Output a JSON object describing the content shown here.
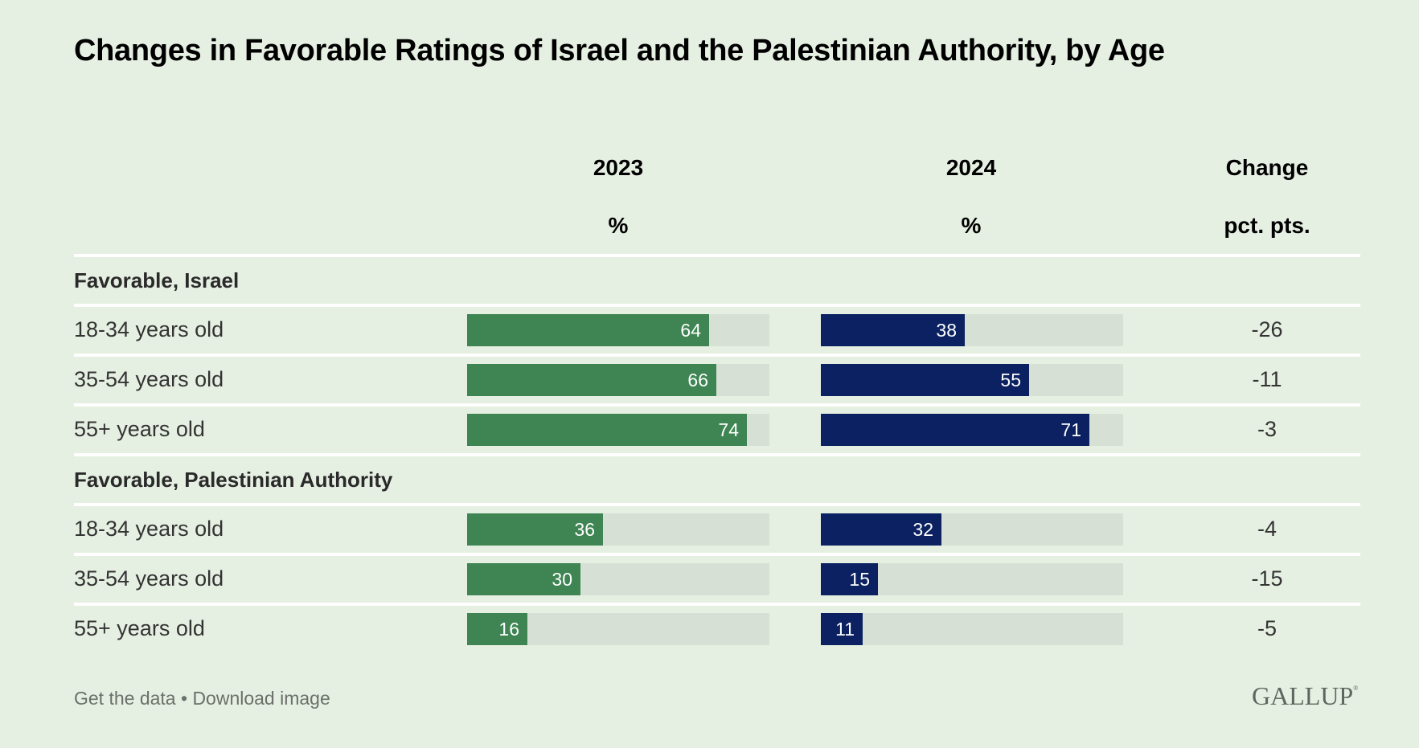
{
  "title": "Changes in Favorable Ratings of Israel and the Palestinian Authority, by Age",
  "columns": [
    {
      "label": "2023",
      "unit": "%"
    },
    {
      "label": "2024",
      "unit": "%"
    },
    {
      "label": "Change",
      "unit": "pct. pts."
    }
  ],
  "colors": {
    "background": "#E6F0E2",
    "track": "#D6E0D4",
    "bar_2023": "#3E8553",
    "bar_2024": "#0B2161",
    "divider": "#FFFFFF"
  },
  "footer": {
    "get_data": "Get the data",
    "separator": "•",
    "download": "Download image",
    "logo": "GALLUP",
    "logo_mark": "®"
  },
  "chart_data": {
    "type": "bar",
    "title": "Changes in Favorable Ratings of Israel and the Palestinian Authority, by Age",
    "orientation": "horizontal",
    "scale_max": 80,
    "series": [
      {
        "name": "2023",
        "unit": "%"
      },
      {
        "name": "2024",
        "unit": "%"
      }
    ],
    "change_column": {
      "name": "Change",
      "unit": "pct. pts."
    },
    "groups": [
      {
        "label": "Favorable, Israel",
        "rows": [
          {
            "category": "18-34 years old",
            "v2023": 64,
            "v2024": 38,
            "change": "-26"
          },
          {
            "category": "35-54 years old",
            "v2023": 66,
            "v2024": 55,
            "change": "-11"
          },
          {
            "category": "55+ years old",
            "v2023": 74,
            "v2024": 71,
            "change": "-3"
          }
        ]
      },
      {
        "label": "Favorable, Palestinian Authority",
        "rows": [
          {
            "category": "18-34 years old",
            "v2023": 36,
            "v2024": 32,
            "change": "-4"
          },
          {
            "category": "35-54 years old",
            "v2023": 30,
            "v2024": 15,
            "change": "-15"
          },
          {
            "category": "55+ years old",
            "v2023": 16,
            "v2024": 11,
            "change": "-5"
          }
        ]
      }
    ]
  }
}
